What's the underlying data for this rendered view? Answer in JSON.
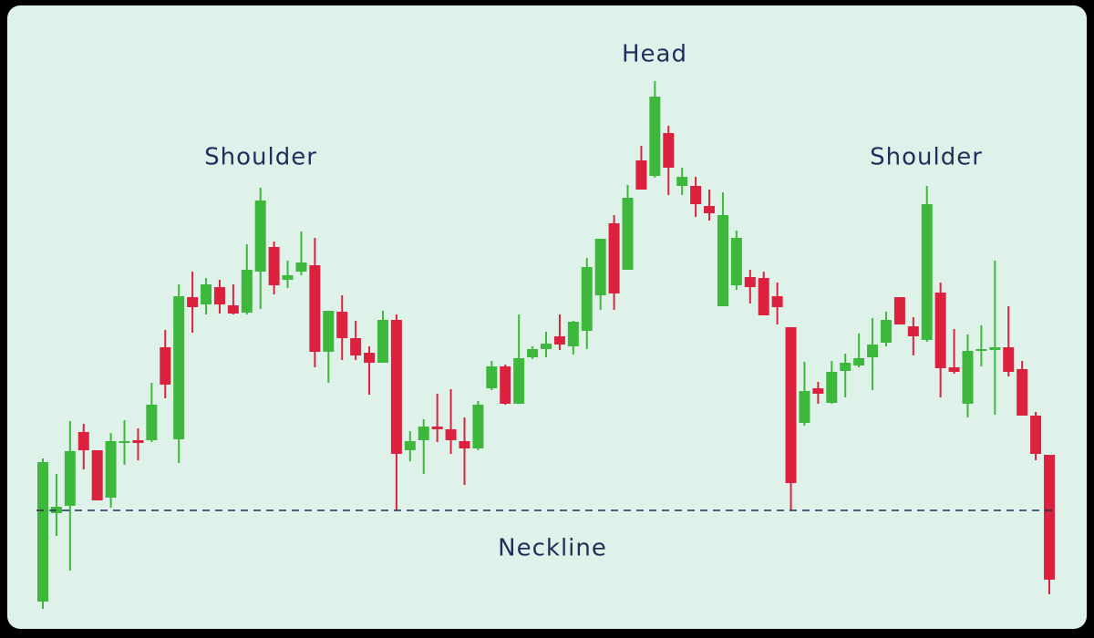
{
  "chart_data": {
    "type": "candlestick",
    "ylim": [
      0,
      696
    ],
    "up_color": "#3db83d",
    "down_color": "#dc213e",
    "annotations": [
      "Shoulder",
      "Head",
      "Shoulder"
    ],
    "neckline": {
      "label": "Neckline",
      "value": 136,
      "color": "#1f2f5c"
    },
    "open": [
      36,
      133,
      141,
      222,
      202,
      150,
      210,
      213,
      213,
      315,
      214,
      370,
      362,
      381,
      361,
      353,
      398,
      425,
      389,
      398,
      405,
      310,
      354,
      325,
      309,
      298,
      345,
      202,
      213,
      228,
      225,
      212,
      204,
      270,
      294,
      253,
      304,
      313,
      327,
      316,
      333,
      372,
      451,
      400,
      520,
      503,
      550,
      492,
      492,
      470,
      360,
      383,
      392,
      391,
      371,
      337,
      232,
      270,
      254,
      289,
      295,
      304,
      320,
      370,
      338,
      323,
      375,
      293,
      253,
      311,
      312,
      315,
      291,
      240,
      197
    ],
    "high": [
      193,
      176,
      234,
      231,
      202,
      221,
      235,
      226,
      276,
      334,
      384,
      398,
      391,
      389,
      384,
      428,
      490,
      431,
      410,
      442,
      435,
      355,
      372,
      344,
      316,
      355,
      351,
      223,
      236,
      264,
      269,
      238,
      256,
      300,
      296,
      351,
      316,
      332,
      351,
      344,
      413,
      434,
      460,
      493,
      536,
      607,
      558,
      512,
      502,
      488,
      485,
      443,
      400,
      398,
      386,
      337,
      299,
      277,
      300,
      308,
      330,
      347,
      354,
      370,
      348,
      492,
      386,
      335,
      329,
      339,
      410,
      360,
      300,
      244,
      197
    ],
    "low": [
      28,
      108,
      70,
      181,
      147,
      139,
      186,
      191,
      211,
      259,
      188,
      331,
      351,
      352,
      351,
      351,
      357,
      373,
      380,
      394,
      293,
      276,
      301,
      301,
      263,
      298,
      136,
      190,
      176,
      211,
      198,
      164,
      202,
      268,
      252,
      253,
      302,
      304,
      312,
      307,
      313,
      356,
      356,
      400,
      488,
      501,
      482,
      482,
      458,
      454,
      360,
      378,
      363,
      350,
      340,
      136,
      229,
      253,
      253,
      260,
      293,
      268,
      316,
      340,
      306,
      321,
      260,
      286,
      238,
      294,
      241,
      283,
      240,
      191,
      44
    ],
    "close": [
      189,
      140,
      201,
      202,
      147,
      212,
      212,
      210,
      252,
      274,
      371,
      359,
      384,
      362,
      352,
      400,
      476,
      383,
      394,
      408,
      310,
      355,
      325,
      306,
      298,
      345,
      198,
      212,
      228,
      225,
      213,
      204,
      252,
      294,
      253,
      303,
      313,
      319,
      318,
      343,
      403,
      434,
      374,
      479,
      488,
      590,
      512,
      502,
      472,
      462,
      460,
      435,
      381,
      350,
      359,
      166,
      267,
      264,
      288,
      298,
      303,
      318,
      345,
      340,
      327,
      472,
      292,
      288,
      311,
      313,
      315,
      288,
      240,
      198,
      60
    ]
  }
}
